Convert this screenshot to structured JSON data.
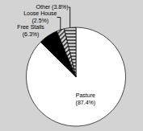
{
  "chart_data": {
    "type": "pie",
    "categories": [
      "Pasture\n(87.4%)",
      "Free Stalls\n(6.3%)",
      "Loose House\n(2.5%)",
      "Other (3.8%)"
    ],
    "values": [
      87.4,
      6.3,
      2.5,
      3.8
    ],
    "colors": [
      "white",
      "black",
      "white",
      "white"
    ]
  }
}
